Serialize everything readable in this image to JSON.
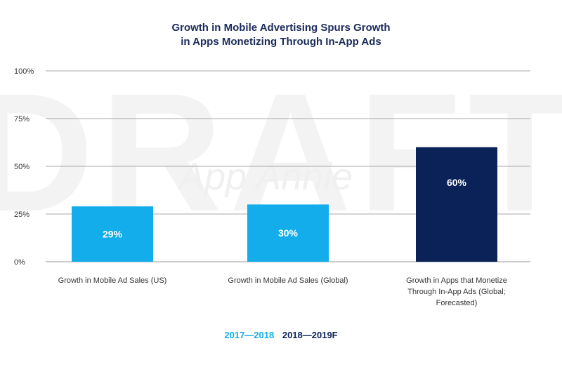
{
  "chart_data": {
    "type": "bar",
    "title": [
      "Growth in Mobile Advertising Spurs Growth",
      "in Apps Monetizing Through In-App Ads"
    ],
    "categories": [
      [
        "Growth in Mobile Ad Sales (US)"
      ],
      [
        "Growth in Mobile Ad Sales (Global)"
      ],
      [
        "Growth in Apps that Monetize",
        "Through In-App Ads (Global;",
        "Forecasted)"
      ]
    ],
    "values": [
      29,
      30,
      60
    ],
    "value_labels": [
      "29%",
      "30%",
      "60%"
    ],
    "bar_series": [
      "2017—2018",
      "2017—2018",
      "2018—2019F"
    ],
    "yticks": [
      0,
      25,
      50,
      75,
      100
    ],
    "ytick_labels": [
      "0%",
      "25%",
      "50%",
      "75%",
      "100%"
    ],
    "ylim": [
      0,
      100
    ],
    "grid": true,
    "legend_position": "bottom-center",
    "legend": [
      {
        "name": "2017—2018",
        "color": "#12adea"
      },
      {
        "name": "2018—2019F",
        "color": "#0b2259"
      }
    ]
  },
  "watermark": {
    "draft_text": "DRAFT",
    "brand_text": "App Annie"
  }
}
